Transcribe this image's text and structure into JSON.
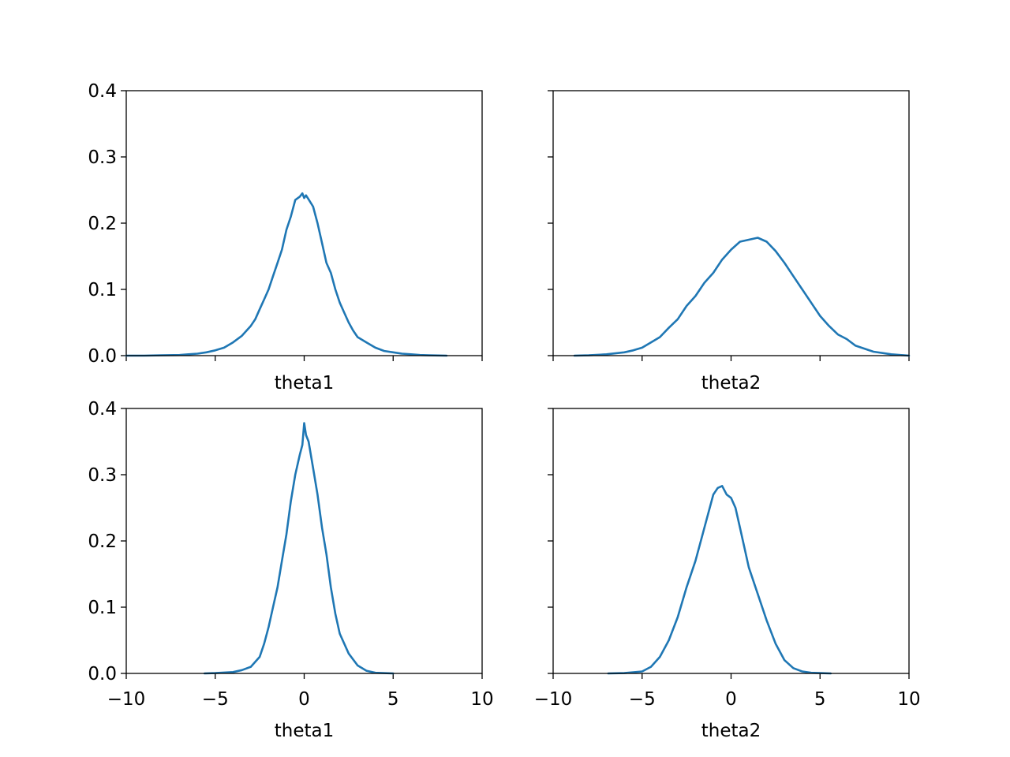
{
  "chart_data": [
    {
      "type": "line",
      "panel": "top-left",
      "xlabel": "theta1",
      "xlim": [
        -10,
        10
      ],
      "ylim": [
        0,
        0.4
      ],
      "xticks": [
        -10,
        -5,
        0,
        5,
        10
      ],
      "yticks": [
        "0.0",
        "0.1",
        "0.2",
        "0.3",
        "0.4"
      ],
      "show_xtick_labels": false,
      "show_ytick_labels": true,
      "color": "#1f77b4",
      "series": [
        {
          "x": [
            -10.0,
            -9.0,
            -8.0,
            -7.0,
            -6.5,
            -6.0,
            -5.5,
            -5.0,
            -4.5,
            -4.0,
            -3.5,
            -3.0,
            -2.75,
            -2.5,
            -2.25,
            -2.0,
            -1.75,
            -1.5,
            -1.25,
            -1.0,
            -0.75,
            -0.5,
            -0.25,
            -0.1,
            0.0,
            0.1,
            0.25,
            0.5,
            0.75,
            1.0,
            1.25,
            1.5,
            1.75,
            2.0,
            2.25,
            2.5,
            2.75,
            3.0,
            3.5,
            4.0,
            4.5,
            5.0,
            5.5,
            6.0,
            6.5,
            7.0,
            8.0
          ],
          "y": [
            0.0,
            0.0,
            0.0005,
            0.001,
            0.002,
            0.003,
            0.005,
            0.008,
            0.012,
            0.02,
            0.03,
            0.045,
            0.055,
            0.07,
            0.085,
            0.1,
            0.12,
            0.14,
            0.16,
            0.19,
            0.21,
            0.235,
            0.24,
            0.245,
            0.238,
            0.242,
            0.236,
            0.225,
            0.2,
            0.17,
            0.14,
            0.125,
            0.1,
            0.08,
            0.065,
            0.05,
            0.038,
            0.028,
            0.02,
            0.012,
            0.007,
            0.005,
            0.003,
            0.002,
            0.001,
            0.0005,
            0.0
          ]
        }
      ]
    },
    {
      "type": "line",
      "panel": "top-right",
      "xlabel": "theta2",
      "xlim": [
        -10,
        10
      ],
      "ylim": [
        0,
        0.4
      ],
      "xticks": [
        -10,
        -5,
        0,
        5,
        10
      ],
      "yticks": [
        "0.0",
        "0.1",
        "0.2",
        "0.3",
        "0.4"
      ],
      "show_xtick_labels": false,
      "show_ytick_labels": false,
      "color": "#1f77b4",
      "series": [
        {
          "x": [
            -8.8,
            -8.0,
            -7.0,
            -6.0,
            -5.5,
            -5.0,
            -4.5,
            -4.0,
            -3.5,
            -3.0,
            -2.5,
            -2.0,
            -1.5,
            -1.0,
            -0.5,
            0.0,
            0.5,
            1.0,
            1.5,
            2.0,
            2.5,
            3.0,
            3.5,
            4.0,
            4.5,
            5.0,
            5.5,
            6.0,
            6.5,
            7.0,
            8.0,
            9.0,
            10.0
          ],
          "y": [
            0.0,
            0.0005,
            0.002,
            0.005,
            0.008,
            0.012,
            0.02,
            0.028,
            0.042,
            0.055,
            0.075,
            0.09,
            0.11,
            0.125,
            0.145,
            0.16,
            0.172,
            0.175,
            0.178,
            0.172,
            0.158,
            0.14,
            0.12,
            0.1,
            0.08,
            0.06,
            0.045,
            0.032,
            0.025,
            0.015,
            0.006,
            0.002,
            0.0
          ]
        }
      ]
    },
    {
      "type": "line",
      "panel": "bottom-left",
      "xlabel": "theta1",
      "xlim": [
        -10,
        10
      ],
      "ylim": [
        0,
        0.4
      ],
      "xticks": [
        -10,
        -5,
        0,
        5,
        10
      ],
      "xticklabels": [
        "−10",
        "−5",
        "0",
        "5",
        "10"
      ],
      "yticks": [
        "0.0",
        "0.1",
        "0.2",
        "0.3",
        "0.4"
      ],
      "show_xtick_labels": true,
      "show_ytick_labels": true,
      "color": "#1f77b4",
      "series": [
        {
          "x": [
            -5.6,
            -5.0,
            -4.0,
            -3.5,
            -3.0,
            -2.5,
            -2.25,
            -2.0,
            -1.75,
            -1.5,
            -1.25,
            -1.0,
            -0.75,
            -0.5,
            -0.25,
            -0.1,
            0.0,
            0.1,
            0.25,
            0.5,
            0.75,
            1.0,
            1.25,
            1.5,
            1.75,
            2.0,
            2.5,
            3.0,
            3.5,
            4.0,
            5.0
          ],
          "y": [
            0.0,
            0.0005,
            0.002,
            0.005,
            0.01,
            0.025,
            0.045,
            0.07,
            0.1,
            0.13,
            0.17,
            0.21,
            0.26,
            0.3,
            0.33,
            0.345,
            0.378,
            0.36,
            0.35,
            0.31,
            0.27,
            0.22,
            0.18,
            0.13,
            0.09,
            0.06,
            0.03,
            0.012,
            0.004,
            0.001,
            0.0
          ]
        }
      ]
    },
    {
      "type": "line",
      "panel": "bottom-right",
      "xlabel": "theta2",
      "xlim": [
        -10,
        10
      ],
      "ylim": [
        0,
        0.4
      ],
      "xticks": [
        -10,
        -5,
        0,
        5,
        10
      ],
      "xticklabels": [
        "−10",
        "−5",
        "0",
        "5",
        "10"
      ],
      "yticks": [
        "0.0",
        "0.1",
        "0.2",
        "0.3",
        "0.4"
      ],
      "show_xtick_labels": true,
      "show_ytick_labels": false,
      "color": "#1f77b4",
      "series": [
        {
          "x": [
            -6.9,
            -6.0,
            -5.0,
            -4.5,
            -4.0,
            -3.5,
            -3.0,
            -2.5,
            -2.0,
            -1.5,
            -1.0,
            -0.75,
            -0.5,
            -0.25,
            0.0,
            0.25,
            0.5,
            0.75,
            1.0,
            1.5,
            2.0,
            2.5,
            3.0,
            3.5,
            4.0,
            4.5,
            5.0,
            5.6
          ],
          "y": [
            0.0,
            0.0005,
            0.003,
            0.01,
            0.025,
            0.05,
            0.085,
            0.13,
            0.17,
            0.22,
            0.27,
            0.28,
            0.283,
            0.27,
            0.265,
            0.25,
            0.22,
            0.19,
            0.16,
            0.12,
            0.08,
            0.045,
            0.02,
            0.008,
            0.003,
            0.001,
            0.0005,
            0.0
          ]
        }
      ]
    }
  ]
}
